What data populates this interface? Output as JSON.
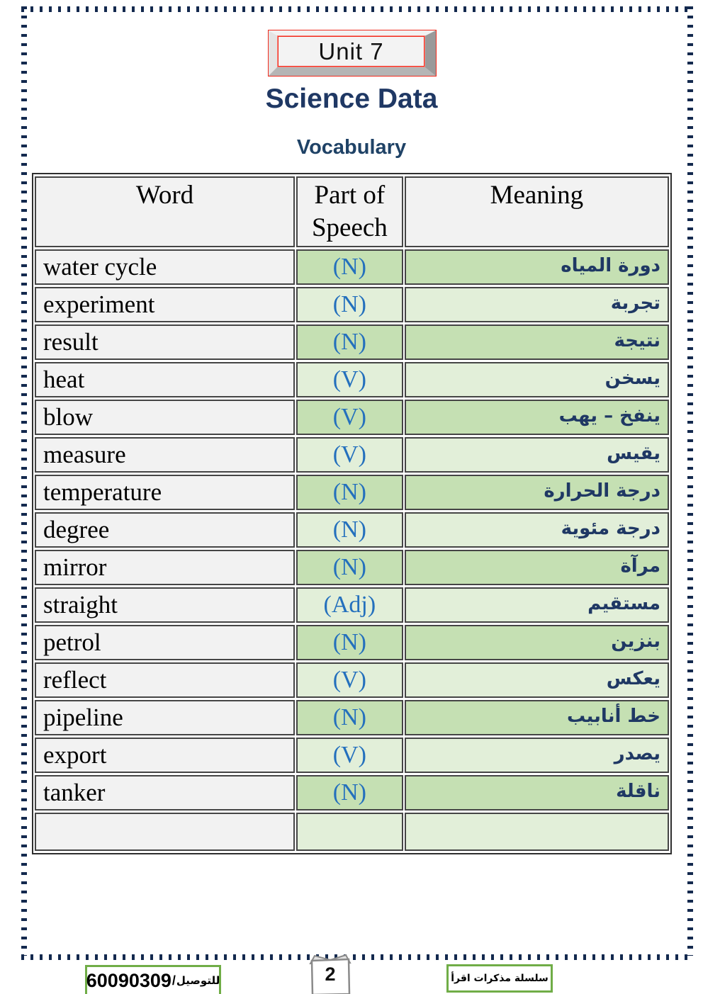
{
  "page": {
    "unit_label": "Unit 7",
    "title": "Science Data",
    "subtitle": "Vocabulary"
  },
  "table": {
    "headers": [
      "Word",
      "Part of Speech",
      "Meaning"
    ],
    "rows": [
      {
        "word": "water cycle",
        "pos": "(N)",
        "meaning": "دورة المياه"
      },
      {
        "word": "experiment",
        "pos": "(N)",
        "meaning": "تجربة"
      },
      {
        "word": "result",
        "pos": "(N)",
        "meaning": "نتيجة"
      },
      {
        "word": "heat",
        "pos": "(V)",
        "meaning": "يسخن"
      },
      {
        "word": "blow",
        "pos": "(V)",
        "meaning": "ينفخ – يهب"
      },
      {
        "word": "measure",
        "pos": "(V)",
        "meaning": "يقيس"
      },
      {
        "word": "temperature",
        "pos": "(N)",
        "meaning": "درجة الحرارة"
      },
      {
        "word": "degree",
        "pos": "(N)",
        "meaning": "درجة مئوية"
      },
      {
        "word": "mirror",
        "pos": "(N)",
        "meaning": "مرآة"
      },
      {
        "word": "straight",
        "pos": "(Adj)",
        "meaning": "مستقيم"
      },
      {
        "word": "petrol",
        "pos": "(N)",
        "meaning": "بنزين"
      },
      {
        "word": "reflect",
        "pos": "(V)",
        "meaning": "يعكس"
      },
      {
        "word": "pipeline",
        "pos": "(N)",
        "meaning": "خط أنابيب"
      },
      {
        "word": "export",
        "pos": "(V)",
        "meaning": "يصدر"
      },
      {
        "word": "tanker",
        "pos": "(N)",
        "meaning": "ناقلة"
      },
      {
        "word": "",
        "pos": "",
        "meaning": ""
      }
    ]
  },
  "footer": {
    "contact_label": "للتوصيل",
    "contact_separator": "/",
    "contact_number": "60090309",
    "page_number": "2",
    "series_label": "سلسلة مذكرات اقرأ"
  },
  "colors": {
    "accent_blue": "#2470bd",
    "navy_text": "#1f3864",
    "band_green_dark": "#c5e0b3",
    "band_green_light": "#e2efd9",
    "footer_border_green": "#70ad47",
    "page_border_navy": "#13294e",
    "unit_box_red": "#f02b1d"
  }
}
